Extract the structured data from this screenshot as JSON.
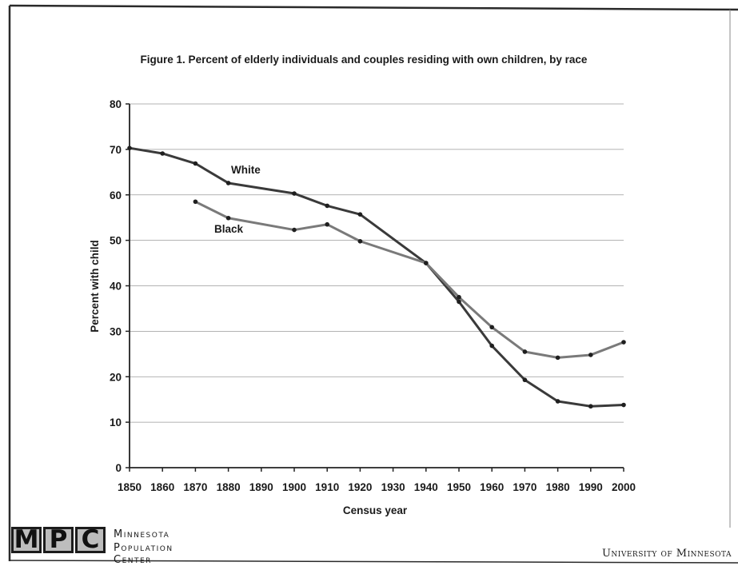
{
  "chart_data": {
    "type": "line",
    "title": "Figure 1. Percent of elderly individuals and couples residing with own children, by race",
    "xlabel": "Census year",
    "ylabel": "Percent with child",
    "x_ticks": [
      1850,
      1860,
      1870,
      1880,
      1890,
      1900,
      1910,
      1920,
      1930,
      1940,
      1950,
      1960,
      1970,
      1980,
      1990,
      2000
    ],
    "y_ticks": [
      0,
      10,
      20,
      30,
      40,
      50,
      60,
      70,
      80
    ],
    "xlim": [
      1850,
      2000
    ],
    "ylim": [
      0,
      80
    ],
    "grid": true,
    "series": [
      {
        "name": "White",
        "color": "#3a3a3a",
        "points": [
          [
            1850,
            70.3
          ],
          [
            1860,
            69.1
          ],
          [
            1870,
            66.9
          ],
          [
            1880,
            62.6
          ],
          [
            1900,
            60.3
          ],
          [
            1910,
            57.6
          ],
          [
            1920,
            55.7
          ],
          [
            1940,
            45.0
          ],
          [
            1950,
            36.5
          ],
          [
            1960,
            26.8
          ],
          [
            1970,
            19.3
          ],
          [
            1980,
            14.6
          ],
          [
            1990,
            13.5
          ],
          [
            2000,
            13.8
          ]
        ]
      },
      {
        "name": "Black",
        "color": "#7a7a7a",
        "points": [
          [
            1870,
            58.5
          ],
          [
            1880,
            54.9
          ],
          [
            1900,
            52.3
          ],
          [
            1910,
            53.5
          ],
          [
            1920,
            49.8
          ],
          [
            1940,
            45.0
          ],
          [
            1950,
            37.5
          ],
          [
            1960,
            30.9
          ],
          [
            1970,
            25.5
          ],
          [
            1980,
            24.2
          ],
          [
            1990,
            24.8
          ],
          [
            2000,
            27.6
          ]
        ]
      }
    ]
  },
  "footer": {
    "logo_letters": [
      "M",
      "P",
      "C"
    ],
    "org_line1": "Minnesota",
    "org_line2": "Population Center",
    "university": "University of Minnesota"
  }
}
